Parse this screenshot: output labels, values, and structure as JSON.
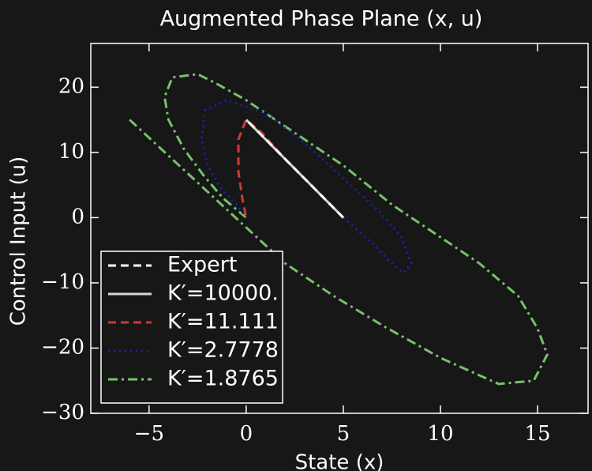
{
  "chart_data": {
    "type": "line",
    "title": "Augmented Phase Plane (x, u)",
    "x_label": "State (x)",
    "y_label": "Control Input (u)",
    "xlim": [
      -8,
      17.6
    ],
    "ylim": [
      -30,
      26.7
    ],
    "xticks": [
      {
        "value": -5,
        "label": "−5"
      },
      0,
      5,
      10,
      15
    ],
    "yticks": [
      {
        "value": -30,
        "label": "−30"
      },
      {
        "value": -20,
        "label": "−20"
      },
      {
        "value": -10,
        "label": "−10"
      },
      0,
      10,
      20
    ],
    "legend": "lower left",
    "series": [
      {
        "name": "K′=1.8765",
        "color": "#77c16b",
        "dash": "dashdot",
        "x": [
          -6,
          -4,
          -2,
          0,
          2,
          4.5,
          7,
          10,
          13,
          14.8,
          15.5,
          15,
          14,
          12,
          10,
          7.5,
          5,
          2.5,
          0,
          -1.5,
          -2.5,
          -3.8,
          -4.2,
          -4,
          -3.2,
          -2.2,
          -1.2,
          0
        ],
        "values": [
          15,
          9.5,
          4,
          -1.5,
          -7,
          -12,
          -16.5,
          -21.5,
          -25.5,
          -25,
          -21,
          -17,
          -12,
          -7,
          -3,
          2,
          8,
          13,
          18,
          20.5,
          22,
          21.5,
          18.5,
          15,
          10.5,
          6.5,
          3,
          0
        ]
      },
      {
        "name": "K′=2.7778",
        "color": "#2020b0",
        "dash": "dotted",
        "x": [
          5,
          6.5,
          7.5,
          8.1,
          8.5,
          8,
          7,
          5,
          3,
          1,
          -1,
          -2.1,
          -2.3,
          -2,
          -1.3,
          -0.5,
          0
        ],
        "values": [
          0,
          -4,
          -7,
          -8.5,
          -7,
          -3,
          0.5,
          6,
          11.5,
          16,
          18,
          16.5,
          12,
          8,
          4.5,
          2,
          0
        ]
      },
      {
        "name": "K′=11.111",
        "color": "#d03a32",
        "dash": "dashed",
        "x": [
          5,
          3.5,
          2,
          0.8,
          0,
          -0.4,
          -0.4,
          -0.2,
          0
        ],
        "values": [
          0,
          4.5,
          9,
          13,
          15,
          12,
          7,
          3,
          0
        ]
      },
      {
        "name": "K′=10000.",
        "color": "#d6d6d6",
        "dash": "solid",
        "x": [
          5,
          0
        ],
        "values": [
          0,
          15
        ]
      },
      {
        "name": "Expert",
        "color": "#ffffff",
        "dash": "dashed",
        "x": [
          5,
          0
        ],
        "values": [
          0,
          15
        ]
      }
    ]
  }
}
